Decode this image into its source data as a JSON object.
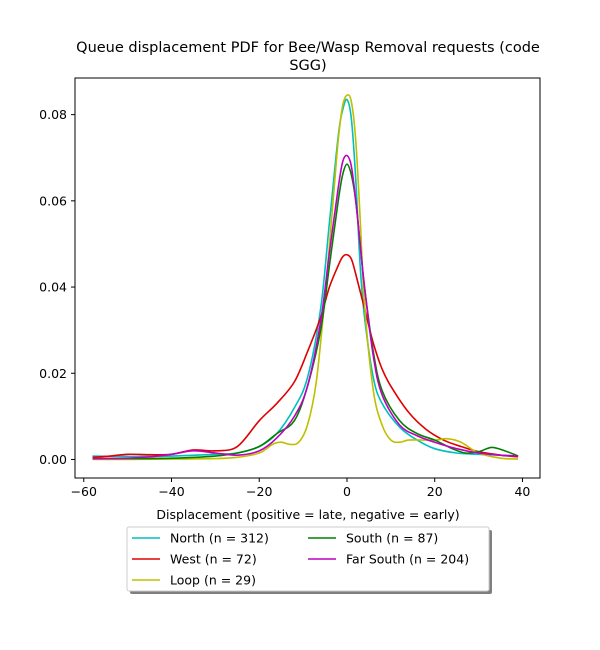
{
  "chart_data": {
    "type": "line",
    "title_line1": "Queue displacement PDF for Bee/Wasp Removal  requests (code",
    "title_line2": "SGG)",
    "xlabel": "Displacement (positive = late, negative = early)",
    "ylabel": "",
    "xlim": [
      -62,
      44
    ],
    "ylim": [
      -0.0043,
      0.0885
    ],
    "xticks": [
      -60,
      -40,
      -20,
      0,
      20,
      40
    ],
    "xtick_labels": [
      "−60",
      "−40",
      "−20",
      "0",
      "20",
      "40"
    ],
    "yticks": [
      0.0,
      0.02,
      0.04,
      0.06,
      0.08
    ],
    "ytick_labels": [
      "0.00",
      "0.02",
      "0.04",
      "0.06",
      "0.08"
    ],
    "grid": false,
    "legend": {
      "placement": "below",
      "columns": 2,
      "shadow": true
    },
    "series": [
      {
        "name": "North (n = 312)",
        "color": "#00bfbf",
        "x": [
          -58,
          -50,
          -40,
          -30,
          -25,
          -20,
          -16,
          -12,
          -9,
          -6,
          -4,
          -2,
          -1,
          0,
          1,
          2,
          3,
          4,
          6,
          8,
          12,
          16,
          20,
          25,
          30,
          35,
          39
        ],
        "y": [
          0.0008,
          0.0007,
          0.0008,
          0.0012,
          0.0015,
          0.003,
          0.006,
          0.012,
          0.019,
          0.035,
          0.055,
          0.075,
          0.081,
          0.0835,
          0.079,
          0.065,
          0.045,
          0.033,
          0.019,
          0.013,
          0.0075,
          0.0045,
          0.0025,
          0.0015,
          0.0012,
          0.001,
          0.0008
        ]
      },
      {
        "name": "West (n = 72)",
        "color": "#e00000",
        "x": [
          -58,
          -54,
          -50,
          -45,
          -40,
          -35,
          -30,
          -25,
          -20,
          -16,
          -12,
          -9,
          -6,
          -4,
          -2,
          -1,
          0,
          1,
          2,
          4,
          6,
          8,
          10,
          14,
          18,
          22,
          26,
          30,
          35,
          39
        ],
        "y": [
          0.0005,
          0.0008,
          0.0012,
          0.0011,
          0.0012,
          0.0022,
          0.002,
          0.003,
          0.009,
          0.013,
          0.018,
          0.025,
          0.033,
          0.04,
          0.045,
          0.047,
          0.0475,
          0.0465,
          0.043,
          0.035,
          0.027,
          0.021,
          0.017,
          0.011,
          0.007,
          0.0045,
          0.003,
          0.0018,
          0.001,
          0.0006
        ]
      },
      {
        "name": "Loop (n = 29)",
        "color": "#bfbf00",
        "x": [
          -58,
          -50,
          -40,
          -30,
          -25,
          -20,
          -17,
          -15,
          -13,
          -11,
          -9,
          -7,
          -5,
          -3,
          -2,
          -1,
          0,
          1,
          2,
          3,
          4,
          6,
          8,
          10,
          12,
          14,
          17,
          20,
          23,
          26,
          30,
          35,
          39
        ],
        "y": [
          0.0,
          0.0,
          0.0001,
          0.0002,
          0.0005,
          0.0015,
          0.0035,
          0.004,
          0.0035,
          0.004,
          0.008,
          0.018,
          0.038,
          0.062,
          0.074,
          0.082,
          0.0845,
          0.083,
          0.074,
          0.056,
          0.036,
          0.016,
          0.008,
          0.0045,
          0.004,
          0.0045,
          0.0045,
          0.0045,
          0.0048,
          0.004,
          0.0015,
          0.0003,
          0.0001
        ]
      },
      {
        "name": "South (n = 87)",
        "color": "#008000",
        "x": [
          -58,
          -50,
          -40,
          -30,
          -25,
          -20,
          -16,
          -12,
          -9,
          -6,
          -4,
          -2,
          -1,
          0,
          1,
          2,
          3,
          4,
          6,
          8,
          12,
          16,
          20,
          24,
          27,
          30,
          33,
          36,
          39
        ],
        "y": [
          0.0002,
          0.0002,
          0.0003,
          0.0008,
          0.0015,
          0.003,
          0.006,
          0.009,
          0.017,
          0.03,
          0.045,
          0.06,
          0.066,
          0.0685,
          0.066,
          0.06,
          0.05,
          0.04,
          0.025,
          0.016,
          0.009,
          0.006,
          0.0045,
          0.0025,
          0.0015,
          0.0018,
          0.0028,
          0.002,
          0.0008
        ]
      },
      {
        "name": "Far South (n = 204)",
        "color": "#bf00bf",
        "x": [
          -58,
          -50,
          -45,
          -40,
          -35,
          -30,
          -25,
          -20,
          -16,
          -12,
          -9,
          -6,
          -4,
          -2,
          -1,
          0,
          1,
          2,
          3,
          4,
          6,
          8,
          12,
          16,
          20,
          25,
          30,
          35,
          39
        ],
        "y": [
          0.0002,
          0.0003,
          0.0006,
          0.0012,
          0.002,
          0.0015,
          0.001,
          0.002,
          0.005,
          0.01,
          0.017,
          0.032,
          0.048,
          0.063,
          0.069,
          0.0705,
          0.068,
          0.06,
          0.05,
          0.04,
          0.024,
          0.015,
          0.008,
          0.0055,
          0.004,
          0.0025,
          0.0015,
          0.001,
          0.0008
        ]
      }
    ]
  }
}
